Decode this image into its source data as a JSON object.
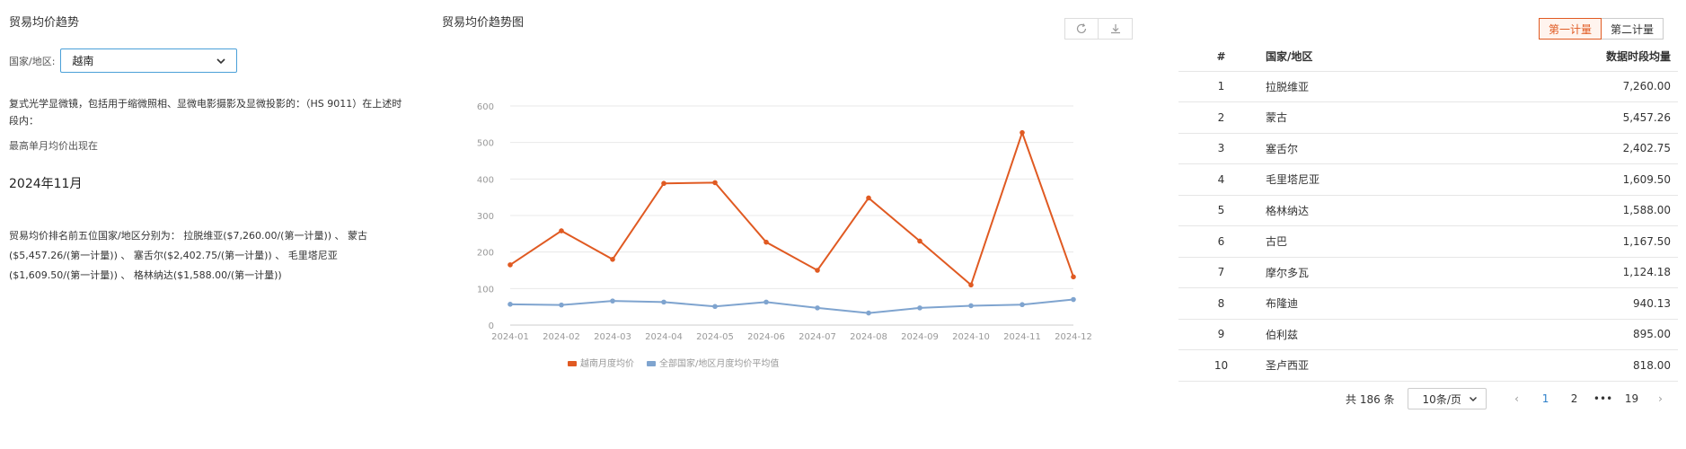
{
  "left": {
    "title": "贸易均价趋势",
    "country_label": "国家/地区:",
    "country_value": "越南",
    "description": "复式光学显微镜，包括用于缩微照相、显微电影摄影及显微投影的：（HS 9011）在上述时段内：",
    "highest_label": "最高单月均价出现在",
    "highest_month": "2024年11月",
    "ranking_text": "贸易均价排名前五位国家/地区分别为： 拉脱维亚($7,260.00/(第一计量)) 、 蒙古($5,457.26/(第一计量)) 、 塞舌尔($2,402.75/(第一计量)) 、 毛里塔尼亚($1,609.50/(第一计量)) 、 格林纳达($1,588.00/(第一计量))"
  },
  "chart_title": "贸易均价趋势图",
  "toggle": {
    "first": "第一计量",
    "second": "第二计量"
  },
  "table": {
    "headers": {
      "rank": "#",
      "country": "国家/地区",
      "qty": "数据时段均量"
    },
    "rows": [
      {
        "rank": "1",
        "country": "拉脱维亚",
        "qty": "7,260.00"
      },
      {
        "rank": "2",
        "country": "蒙古",
        "qty": "5,457.26"
      },
      {
        "rank": "3",
        "country": "塞舌尔",
        "qty": "2,402.75"
      },
      {
        "rank": "4",
        "country": "毛里塔尼亚",
        "qty": "1,609.50"
      },
      {
        "rank": "5",
        "country": "格林纳达",
        "qty": "1,588.00"
      },
      {
        "rank": "6",
        "country": "古巴",
        "qty": "1,167.50"
      },
      {
        "rank": "7",
        "country": "摩尔多瓦",
        "qty": "1,124.18"
      },
      {
        "rank": "8",
        "country": "布隆迪",
        "qty": "940.13"
      },
      {
        "rank": "9",
        "country": "伯利兹",
        "qty": "895.00"
      },
      {
        "rank": "10",
        "country": "圣卢西亚",
        "qty": "818.00"
      }
    ]
  },
  "pager": {
    "total": "共 186 条",
    "page_size": "10条/页",
    "prev": "‹",
    "pages": [
      "1",
      "2",
      "•••",
      "19"
    ],
    "next": "›"
  },
  "colors": {
    "series_vn": "#e05a22",
    "series_avg": "#7fa4cf",
    "accent": "#e05a22"
  },
  "chart_data": {
    "type": "line",
    "title": "贸易均价趋势图",
    "categories": [
      "2024-01",
      "2024-02",
      "2024-03",
      "2024-04",
      "2024-05",
      "2024-06",
      "2024-07",
      "2024-08",
      "2024-09",
      "2024-10",
      "2024-11",
      "2024-12"
    ],
    "ylim": [
      0,
      600
    ],
    "yticks": [
      0,
      100,
      200,
      300,
      400,
      500,
      600
    ],
    "grid": true,
    "legend_position": "bottom",
    "series": [
      {
        "name": "越南月度均价",
        "color": "#e05a22",
        "values": [
          165,
          258,
          180,
          388,
          390,
          227,
          150,
          348,
          230,
          110,
          527,
          132
        ]
      },
      {
        "name": "全部国家/地区月度均价平均值",
        "color": "#7fa4cf",
        "values": [
          57,
          55,
          66,
          63,
          51,
          63,
          47,
          33,
          47,
          53,
          56,
          70
        ]
      }
    ]
  }
}
